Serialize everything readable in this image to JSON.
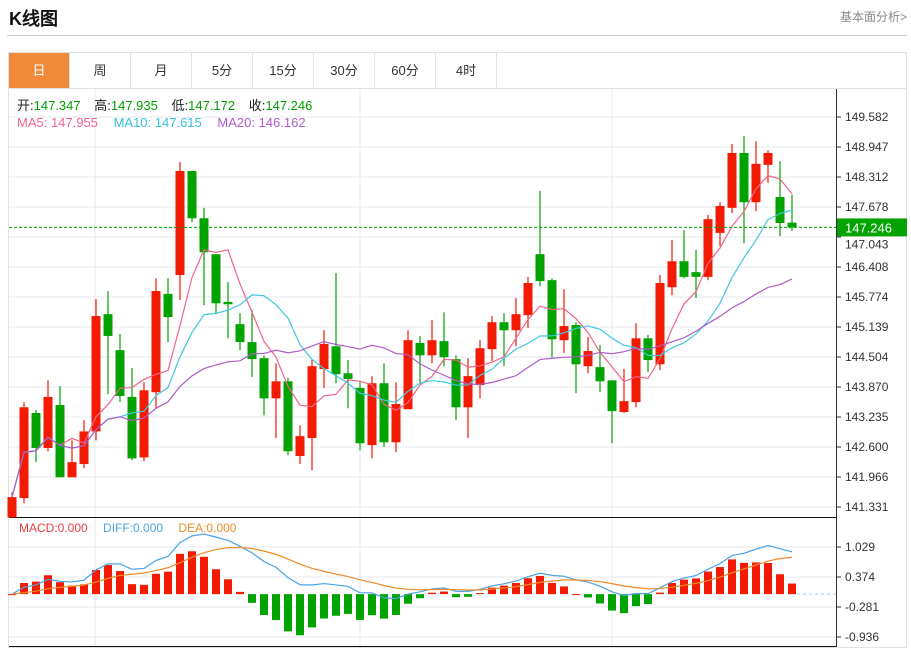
{
  "header": {
    "title": "K线图",
    "more_link": "基本面分析>"
  },
  "tabs": [
    {
      "label": "日",
      "active": true
    },
    {
      "label": "周"
    },
    {
      "label": "月"
    },
    {
      "label": "5分"
    },
    {
      "label": "15分"
    },
    {
      "label": "30分"
    },
    {
      "label": "60分"
    },
    {
      "label": "4时"
    }
  ],
  "ohlc_info": {
    "open_label": "开:",
    "open": "147.347",
    "high_label": "高:",
    "high": "147.935",
    "low_label": "低:",
    "low": "147.172",
    "close_label": "收:",
    "close": "147.246"
  },
  "ma_info": {
    "ma5": "MA5: 147.955",
    "ma10": "MA10: 147.615",
    "ma20": "MA20: 146.162"
  },
  "macd_info": {
    "macd": "MACD:0.000",
    "diff": "DIFF:0.000",
    "dea": "DEA:0.000"
  },
  "colors": {
    "up": "#f21a00",
    "down": "#00a300",
    "ma5": "#f0648c",
    "ma10": "#40c8e0",
    "ma20": "#b05cc8",
    "diff": "#4aa3e8",
    "dea": "#f08a2a",
    "accent": "#f28a3c"
  },
  "chart_data": {
    "type": "candlestick",
    "price_axis": {
      "ticks": [
        "149.582",
        "148.947",
        "148.312",
        "147.678",
        "147.043",
        "146.408",
        "145.774",
        "145.139",
        "144.504",
        "143.870",
        "143.235",
        "142.600",
        "141.966",
        "141.331"
      ],
      "range": [
        141.331,
        149.582
      ]
    },
    "current_price": "147.246",
    "candles": [
      [
        141.11,
        141.64,
        141.11,
        141.54
      ],
      [
        141.52,
        143.55,
        141.41,
        143.44
      ],
      [
        143.32,
        143.38,
        142.28,
        142.58
      ],
      [
        142.58,
        144.01,
        142.51,
        143.66
      ],
      [
        143.49,
        143.89,
        141.96,
        141.96
      ],
      [
        141.96,
        142.74,
        141.96,
        142.28
      ],
      [
        142.24,
        143.17,
        142.15,
        142.93
      ],
      [
        142.93,
        145.73,
        142.74,
        145.37
      ],
      [
        145.41,
        145.9,
        143.72,
        144.95
      ],
      [
        144.65,
        144.99,
        143.55,
        143.68
      ],
      [
        143.66,
        144.27,
        142.32,
        142.36
      ],
      [
        142.38,
        143.97,
        142.3,
        143.8
      ],
      [
        143.76,
        146.17,
        143.42,
        145.9
      ],
      [
        145.84,
        146.17,
        144.82,
        145.35
      ],
      [
        146.24,
        148.63,
        145.71,
        148.44
      ],
      [
        148.44,
        148.44,
        147.36,
        147.44
      ],
      [
        147.44,
        147.66,
        145.6,
        146.72
      ],
      [
        146.68,
        146.68,
        145.41,
        145.64
      ],
      [
        145.67,
        146.09,
        144.9,
        145.62
      ],
      [
        145.2,
        145.43,
        144.65,
        144.82
      ],
      [
        144.82,
        145.5,
        144.08,
        144.46
      ],
      [
        144.48,
        144.54,
        143.27,
        143.63
      ],
      [
        143.63,
        144.37,
        142.79,
        143.99
      ],
      [
        143.99,
        144.06,
        142.43,
        142.51
      ],
      [
        142.41,
        143.06,
        142.24,
        142.83
      ],
      [
        142.79,
        144.44,
        142.11,
        144.31
      ],
      [
        144.25,
        145.07,
        143.85,
        144.78
      ],
      [
        144.73,
        146.28,
        143.95,
        144.14
      ],
      [
        144.16,
        144.44,
        143.42,
        144.04
      ],
      [
        143.85,
        143.97,
        142.53,
        142.68
      ],
      [
        142.64,
        144.1,
        142.36,
        143.95
      ],
      [
        143.95,
        144.37,
        142.6,
        142.7
      ],
      [
        142.7,
        143.97,
        142.49,
        143.51
      ],
      [
        143.4,
        145.07,
        143.4,
        144.86
      ],
      [
        144.8,
        144.95,
        143.95,
        144.54
      ],
      [
        144.54,
        145.29,
        144.37,
        144.86
      ],
      [
        144.84,
        145.45,
        144.31,
        144.5
      ],
      [
        144.46,
        144.54,
        143.17,
        143.44
      ],
      [
        143.44,
        144.48,
        142.79,
        144.1
      ],
      [
        143.91,
        144.86,
        143.63,
        144.69
      ],
      [
        144.67,
        145.37,
        144.42,
        145.24
      ],
      [
        145.24,
        145.43,
        144.31,
        145.07
      ],
      [
        145.07,
        145.75,
        144.73,
        145.41
      ],
      [
        145.39,
        146.2,
        145.12,
        146.07
      ],
      [
        146.68,
        148.02,
        146.0,
        146.11
      ],
      [
        146.13,
        146.17,
        144.5,
        144.88
      ],
      [
        144.86,
        145.94,
        144.59,
        145.16
      ],
      [
        145.18,
        145.24,
        143.74,
        144.35
      ],
      [
        144.31,
        144.93,
        144.16,
        144.63
      ],
      [
        144.29,
        144.76,
        143.76,
        143.99
      ],
      [
        144.01,
        144.01,
        142.68,
        143.36
      ],
      [
        143.34,
        144.25,
        143.32,
        143.57
      ],
      [
        143.55,
        145.22,
        143.44,
        144.9
      ],
      [
        144.9,
        144.97,
        144.18,
        144.44
      ],
      [
        144.35,
        146.24,
        144.23,
        146.07
      ],
      [
        145.98,
        146.98,
        145.81,
        146.53
      ],
      [
        146.53,
        147.19,
        146.17,
        146.2
      ],
      [
        146.3,
        146.77,
        145.75,
        146.2
      ],
      [
        146.2,
        147.51,
        146.13,
        147.42
      ],
      [
        147.13,
        147.78,
        146.85,
        147.7
      ],
      [
        147.66,
        149.01,
        147.55,
        148.82
      ],
      [
        148.82,
        149.18,
        146.91,
        147.78
      ],
      [
        147.78,
        149.07,
        147.59,
        148.59
      ],
      [
        148.57,
        148.88,
        148.19,
        148.82
      ],
      [
        147.89,
        148.65,
        147.06,
        147.34
      ],
      [
        147.347,
        147.935,
        147.172,
        147.246
      ]
    ],
    "macd_axis": {
      "ticks": [
        "1.029",
        "0.374",
        "-0.281",
        "-0.936"
      ],
      "values": [
        1.029,
        0.374,
        -0.281,
        -0.936
      ]
    }
  }
}
